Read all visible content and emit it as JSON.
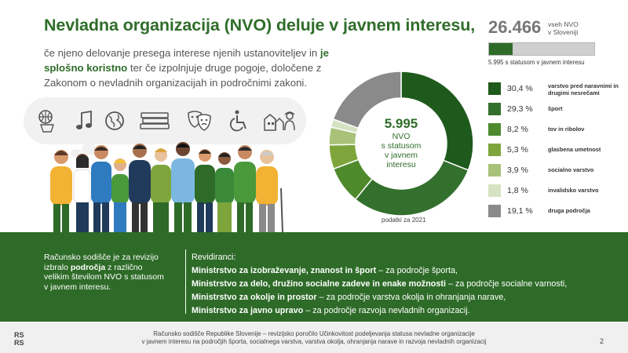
{
  "title": "Nevladna organizacija (NVO) deluje v javnem interesu,",
  "intro": {
    "part1": "če njeno delovanje presega interese njenih ustanoviteljev in ",
    "highlight": "je splošno koristno",
    "part2": " ter če izpolnjuje druge pogoje, določene z Zakonom o nevladnih organizacijah in področnimi zakoni."
  },
  "icons": [
    "basketball-icon",
    "music-note-icon",
    "globe-icon",
    "books-icon",
    "theatre-masks-icon",
    "wheelchair-icon",
    "houses-firefighter-icon"
  ],
  "total": {
    "number": "26.466",
    "label_line1": "vseh NVO",
    "label_line2": "v Sloveniji",
    "status_label": "5.995 s statusom v javnem interesu",
    "share_with_status": 0.2265
  },
  "donut_center": {
    "number": "5.995",
    "line1": "NVO",
    "line2": "s statusom",
    "line3": "v javnem",
    "line4": "interesu"
  },
  "source": "podatki za 2021",
  "chart_data": {
    "type": "pie",
    "title": "",
    "categories": [
      "varstvo pred naravnimi in drugimi nesrečami",
      "šport",
      "tov in ribolov",
      "glasbena umetnost",
      "socialno varstvo",
      "invalidsko varstvo",
      "druga področja"
    ],
    "values": [
      30.4,
      29.3,
      8.2,
      5.3,
      3.9,
      1.8,
      19.1
    ],
    "labels": [
      "30,4 %",
      "29,3 %",
      "8,2 %",
      "5,3 %",
      "3,9 %",
      "1,8 %",
      "19,1 %"
    ],
    "colors": [
      "#1f5a1d",
      "#336f2d",
      "#4e8a2c",
      "#7ea53c",
      "#a9c279",
      "#d6e3c3",
      "#8a8a8a"
    ],
    "legend": "right"
  },
  "band": {
    "left_p1": "Računsko sodišče je za revizijo izbralo ",
    "left_bold": "področja",
    "left_p2": " z različno velikim številom NVO s statusom v javnem interesu.",
    "heading": "Revidiranci:",
    "rows": [
      {
        "bold": "Ministrstvo za izobraževanje, znanost in šport",
        "rest": " – za področje športa,"
      },
      {
        "bold": "Ministrstvo za delo, družino socialne zadeve in enake možnosti",
        "rest": " – za področje socialne varnosti,"
      },
      {
        "bold": "Ministrstvo za okolje in prostor",
        "rest": " – za področje varstva okolja in ohranjanja narave,"
      },
      {
        "bold": "Ministrstvo za javno upravo",
        "rest": " – za področje razvoja nevladnih organizacij."
      }
    ]
  },
  "footer": {
    "logo_top": "RS",
    "logo_bottom": "RS",
    "line1": "Računsko sodišče Republike Slovenije – revizijsko poročilo Učinkovitost podeljevanja statusa nevladne organizacije",
    "line2": "v javnem interesu na področjih športa, socialnega varstva, varstva okolja, ohranjanja narave in razvoja nevladnih organizacij",
    "page": "2"
  }
}
